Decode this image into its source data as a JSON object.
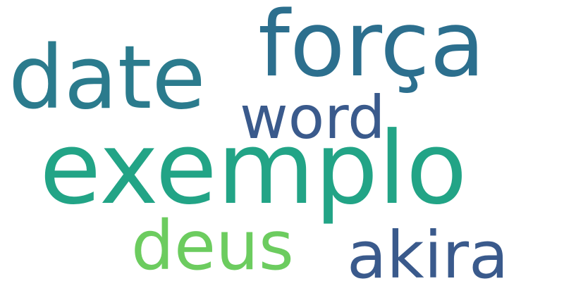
{
  "word_cloud": {
    "background_color": "#ffffff",
    "words": [
      {
        "id": "w-exemplo",
        "text": "exemplo",
        "color": "#22a486"
      },
      {
        "id": "w-forca",
        "text": "força",
        "color": "#2c6f8e"
      },
      {
        "id": "w-date",
        "text": "date",
        "color": "#2b7b8d"
      },
      {
        "id": "w-word",
        "text": "word",
        "color": "#3a5a8c"
      },
      {
        "id": "w-deus",
        "text": "deus",
        "color": "#6ccc5f"
      },
      {
        "id": "w-akira",
        "text": "akira",
        "color": "#3a5a8c"
      }
    ]
  }
}
